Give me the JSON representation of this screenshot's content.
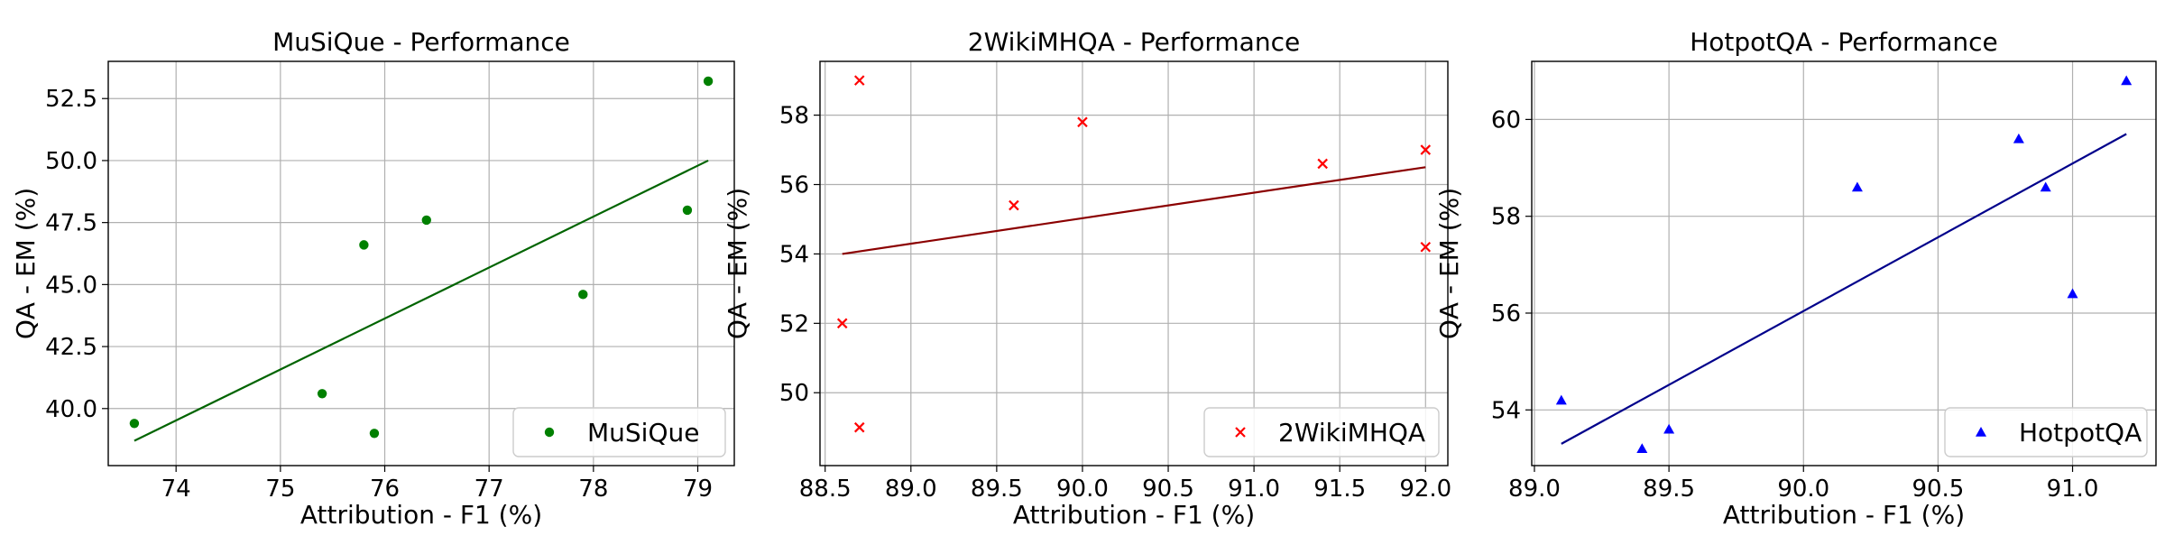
{
  "chart_data": [
    {
      "type": "scatter",
      "title": "MuSiQue - Performance",
      "xlabel": "Attribution - F1 (%)",
      "ylabel": "QA - EM (%)",
      "xlim": [
        73.35,
        79.35
      ],
      "ylim": [
        37.7,
        54.0
      ],
      "xticks": [
        74,
        75,
        76,
        77,
        78,
        79
      ],
      "xtick_labels": [
        "74",
        "75",
        "76",
        "77",
        "78",
        "79"
      ],
      "yticks": [
        40.0,
        42.5,
        45.0,
        47.5,
        50.0,
        52.5
      ],
      "ytick_labels": [
        "40.0",
        "42.5",
        "45.0",
        "47.5",
        "50.0",
        "52.5"
      ],
      "grid": true,
      "legend_position": "lower right",
      "series": [
        {
          "name": "MuSiQue",
          "marker": "circle",
          "color": "#008000",
          "x": [
            73.6,
            75.4,
            75.8,
            75.9,
            76.4,
            77.9,
            78.9,
            79.1
          ],
          "y": [
            39.4,
            40.6,
            46.6,
            39.0,
            47.6,
            44.6,
            48.0,
            53.2
          ]
        }
      ],
      "trend_line": {
        "color": "#006400",
        "x": [
          73.6,
          79.1
        ],
        "y": [
          38.7,
          50.0
        ]
      }
    },
    {
      "type": "scatter",
      "title": "2WikiMHQA - Performance",
      "xlabel": "Attribution - F1 (%)",
      "ylabel": "QA - EM (%)",
      "xlim": [
        88.47,
        92.13
      ],
      "ylim": [
        47.9,
        59.55
      ],
      "xticks": [
        88.5,
        89.0,
        89.5,
        90.0,
        90.5,
        91.0,
        91.5,
        92.0
      ],
      "xtick_labels": [
        "88.5",
        "89.0",
        "89.5",
        "90.0",
        "90.5",
        "91.0",
        "91.5",
        "92.0"
      ],
      "yticks": [
        50,
        52,
        54,
        56,
        58
      ],
      "ytick_labels": [
        "50",
        "52",
        "54",
        "56",
        "58"
      ],
      "grid": true,
      "legend_position": "lower right",
      "series": [
        {
          "name": "2WikiMHQA",
          "marker": "x",
          "color": "#ff0000",
          "x": [
            88.6,
            88.7,
            88.7,
            89.6,
            90.0,
            91.4,
            92.0,
            92.0
          ],
          "y": [
            52.0,
            59.0,
            49.0,
            55.4,
            57.8,
            56.6,
            57.0,
            54.2
          ]
        }
      ],
      "trend_line": {
        "color": "#8b0000",
        "x": [
          88.6,
          92.0
        ],
        "y": [
          54.0,
          56.5
        ]
      }
    },
    {
      "type": "scatter",
      "title": "HotpotQA - Performance",
      "xlabel": "Attribution - F1 (%)",
      "ylabel": "QA - EM (%)",
      "xlim": [
        88.99,
        91.31
      ],
      "ylim": [
        52.85,
        61.2
      ],
      "xticks": [
        89.0,
        89.5,
        90.0,
        90.5,
        91.0
      ],
      "xtick_labels": [
        "89.0",
        "89.5",
        "90.0",
        "90.5",
        "91.0"
      ],
      "yticks": [
        54,
        56,
        58,
        60
      ],
      "ytick_labels": [
        "54",
        "56",
        "58",
        "60"
      ],
      "grid": true,
      "legend_position": "lower right",
      "series": [
        {
          "name": "HotpotQA",
          "marker": "triangle",
          "color": "#0000ff",
          "x": [
            89.1,
            89.4,
            89.5,
            90.2,
            90.8,
            90.9,
            91.0,
            91.2
          ],
          "y": [
            54.2,
            53.2,
            53.6,
            58.6,
            59.6,
            58.6,
            56.4,
            60.8
          ]
        }
      ],
      "trend_line": {
        "color": "#00008b",
        "x": [
          89.1,
          91.2
        ],
        "y": [
          53.3,
          59.7
        ]
      }
    }
  ]
}
